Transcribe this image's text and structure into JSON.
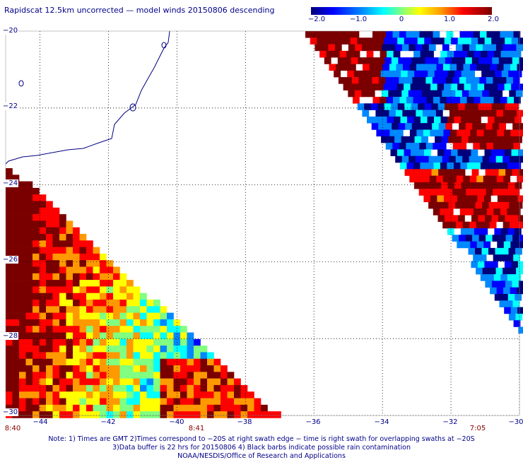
{
  "header": {
    "title": "Rapidscat 12.5km uncorrected — model winds 20150806 descending"
  },
  "colorbar": {
    "ticks": [
      "−2.0",
      "−1.0",
      "0",
      "1.0",
      "2.0"
    ],
    "range": [
      -2.0,
      2.0
    ],
    "colors": [
      "#00007a",
      "#0000ff",
      "#0088ff",
      "#00ffff",
      "#80ff80",
      "#ffff00",
      "#ff9900",
      "#ff0000",
      "#7a0000"
    ]
  },
  "map": {
    "lon_labels": [
      "−44",
      "−42",
      "−40",
      "−38",
      "−36",
      "−34",
      "−32",
      "−30"
    ],
    "lat_labels": [
      "−20",
      "−22",
      "−24",
      "−26",
      "−28",
      "−30"
    ],
    "lon_range": [
      -45,
      -30
    ],
    "lat_range": [
      -30,
      -20
    ],
    "grid": "dotted",
    "coastline_color": "#000080"
  },
  "times": [
    "8:40",
    "8:41",
    "7:05"
  ],
  "footer": {
    "note1": "Note: 1) Times are GMT 2)Times correspond to −20S at right swath edge − time is right swath for overlapping swaths at −20S",
    "note2": "3)Data buffer is 22 hrs for 20150806 4) Black barbs indicate possible rain contamination",
    "credit": "NOAA/NESDIS/Office of Research and Applications"
  }
}
